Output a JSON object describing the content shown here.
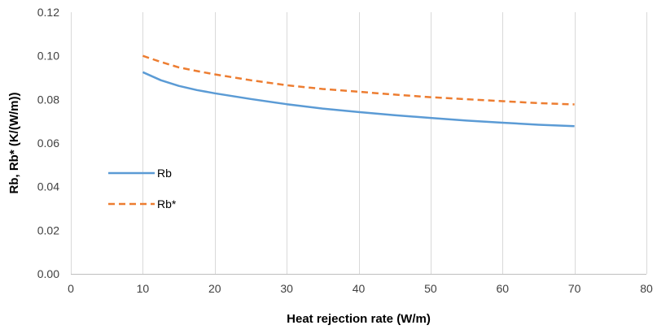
{
  "chart_data": {
    "type": "line",
    "title": "",
    "xlabel": "Heat rejection rate (W/m)",
    "ylabel": "Rb, Rb* (K/(W/m))",
    "xlim": [
      0,
      80
    ],
    "ylim": [
      0,
      0.12
    ],
    "xticks": [
      0,
      10,
      20,
      30,
      40,
      50,
      60,
      70,
      80
    ],
    "yticks": [
      0,
      0.02,
      0.04,
      0.06,
      0.08,
      0.1,
      0.12
    ],
    "ytick_labels": [
      "0.00",
      "0.02",
      "0.04",
      "0.06",
      "0.08",
      "0.10",
      "0.12"
    ],
    "grid": "vertical",
    "legend_position": "left-middle",
    "series": [
      {
        "name": "Rb",
        "color": "#5B9BD5",
        "dash": "solid",
        "x": [
          10,
          12.5,
          15,
          17.5,
          20,
          25,
          30,
          35,
          40,
          45,
          50,
          55,
          60,
          65,
          70
        ],
        "y": [
          0.0925,
          0.0888,
          0.0862,
          0.0843,
          0.0828,
          0.0802,
          0.0778,
          0.0758,
          0.0742,
          0.0728,
          0.0715,
          0.0703,
          0.0693,
          0.0684,
          0.0677
        ]
      },
      {
        "name": "Rb*",
        "color": "#ED7D31",
        "dash": "dashed",
        "x": [
          10,
          12.5,
          15,
          17.5,
          20,
          25,
          30,
          35,
          40,
          45,
          50,
          55,
          60,
          65,
          70
        ],
        "y": [
          0.1,
          0.0972,
          0.0947,
          0.093,
          0.0915,
          0.0888,
          0.0865,
          0.0848,
          0.0835,
          0.0822,
          0.081,
          0.0801,
          0.0792,
          0.0783,
          0.0777
        ]
      }
    ]
  }
}
